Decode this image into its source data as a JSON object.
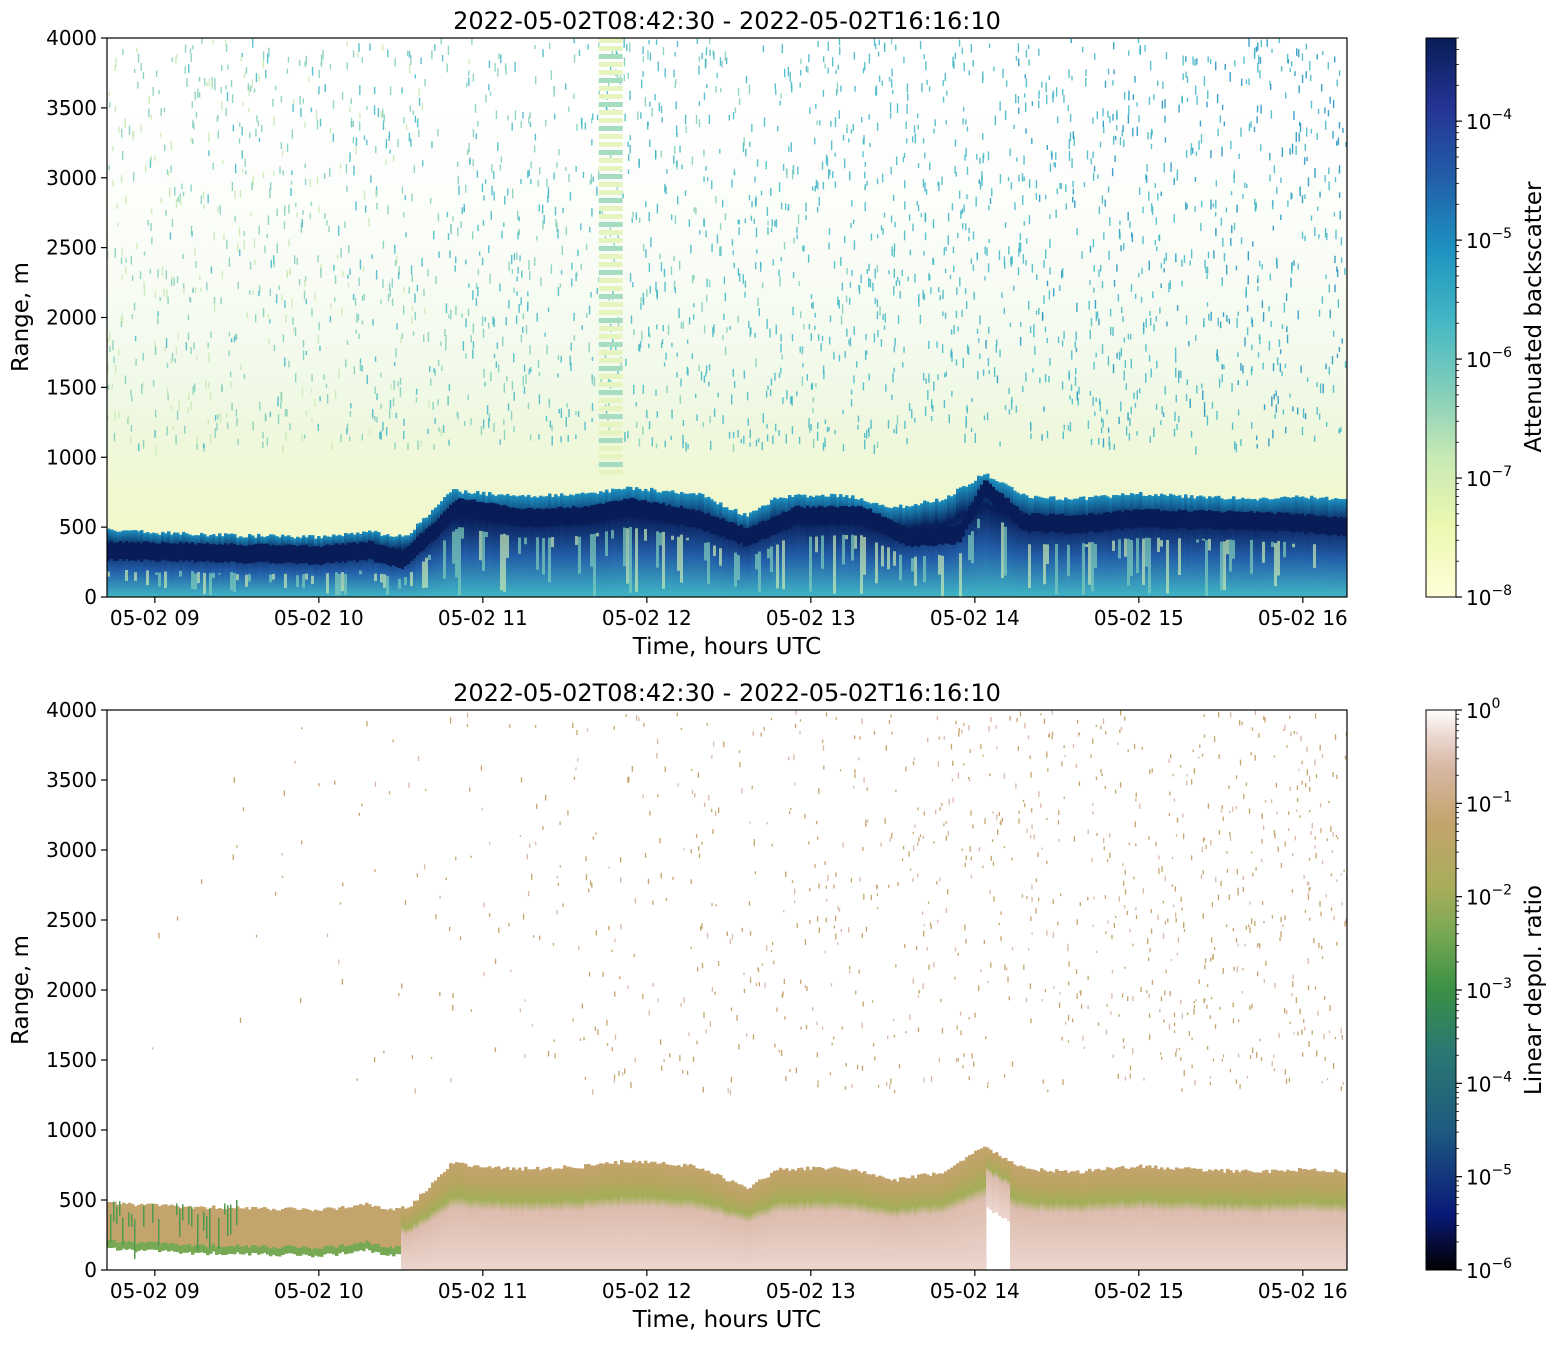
{
  "chart_data": [
    {
      "type": "heatmap",
      "title": "2022-05-02T08:42:30 - 2022-05-02T16:16:10",
      "xlabel": "Time, hours UTC",
      "ylabel": "Range, m",
      "x_range": [
        "2022-05-02T08:42:30",
        "2022-05-02T16:16:10"
      ],
      "x_tick_labels": [
        "05-02 09",
        "05-02 10",
        "05-02 11",
        "05-02 12",
        "05-02 13",
        "05-02 14",
        "05-02 15",
        "05-02 16"
      ],
      "x_tick_hours": [
        9,
        10,
        11,
        12,
        13,
        14,
        15,
        16
      ],
      "ylim": [
        0,
        4000
      ],
      "y_ticks": [
        0,
        500,
        1000,
        1500,
        2000,
        2500,
        3000,
        3500,
        4000
      ],
      "colorbar": {
        "label": "Attenuated backscatter",
        "scale": "log",
        "range": [
          1e-08,
          0.0005
        ],
        "tick_exponents": [
          -8,
          -7,
          -6,
          -5,
          -4
        ],
        "colormap": "YlGnBu",
        "colors": [
          "#ffffd9",
          "#edf8b1",
          "#c7e9b4",
          "#7fcdbb",
          "#41b6c4",
          "#1d91c0",
          "#225ea8",
          "#253494",
          "#081d58"
        ]
      },
      "layer_top_m": [
        [
          8.7,
          480
        ],
        [
          9.0,
          460
        ],
        [
          9.5,
          440
        ],
        [
          10.0,
          430
        ],
        [
          10.3,
          470
        ],
        [
          10.45,
          430
        ],
        [
          10.55,
          460
        ],
        [
          10.8,
          760
        ],
        [
          11.2,
          720
        ],
        [
          11.6,
          740
        ],
        [
          11.9,
          780
        ],
        [
          12.3,
          740
        ],
        [
          12.6,
          580
        ],
        [
          12.8,
          720
        ],
        [
          13.2,
          730
        ],
        [
          13.5,
          640
        ],
        [
          13.8,
          700
        ],
        [
          14.05,
          880
        ],
        [
          14.3,
          720
        ],
        [
          14.6,
          700
        ],
        [
          15.0,
          740
        ],
        [
          15.3,
          720
        ],
        [
          15.7,
          700
        ],
        [
          16.0,
          720
        ],
        [
          16.27,
          700
        ]
      ],
      "layer_peak_m": [
        [
          8.7,
          330
        ],
        [
          9.2,
          320
        ],
        [
          9.6,
          310
        ],
        [
          10.0,
          300
        ],
        [
          10.3,
          330
        ],
        [
          10.5,
          270
        ],
        [
          10.7,
          480
        ],
        [
          10.85,
          650
        ],
        [
          11.2,
          570
        ],
        [
          11.6,
          580
        ],
        [
          11.9,
          640
        ],
        [
          12.3,
          560
        ],
        [
          12.6,
          430
        ],
        [
          12.9,
          580
        ],
        [
          13.3,
          590
        ],
        [
          13.6,
          420
        ],
        [
          13.9,
          450
        ],
        [
          14.05,
          780
        ],
        [
          14.3,
          530
        ],
        [
          14.6,
          520
        ],
        [
          15.0,
          560
        ],
        [
          15.4,
          550
        ],
        [
          15.8,
          540
        ],
        [
          16.27,
          500
        ]
      ]
    },
    {
      "type": "heatmap",
      "title": "2022-05-02T08:42:30 - 2022-05-02T16:16:10",
      "xlabel": "Time, hours UTC",
      "ylabel": "Range, m",
      "x_range": [
        "2022-05-02T08:42:30",
        "2022-05-02T16:16:10"
      ],
      "x_tick_labels": [
        "05-02 09",
        "05-02 10",
        "05-02 11",
        "05-02 12",
        "05-02 13",
        "05-02 14",
        "05-02 15",
        "05-02 16"
      ],
      "x_tick_hours": [
        9,
        10,
        11,
        12,
        13,
        14,
        15,
        16
      ],
      "ylim": [
        0,
        4000
      ],
      "y_ticks": [
        0,
        500,
        1000,
        1500,
        2000,
        2500,
        3000,
        3500,
        4000
      ],
      "colorbar": {
        "label": "Linear depol. ratio",
        "scale": "log",
        "range": [
          1e-06,
          1
        ],
        "tick_exponents": [
          -6,
          -5,
          -4,
          -3,
          -2,
          -1,
          0
        ],
        "colormap": "gist_earth",
        "colors": [
          "#000000",
          "#0a1a78",
          "#1e5a80",
          "#2a7a70",
          "#3a9045",
          "#77a853",
          "#a8ad5a",
          "#c4a46d",
          "#d8b8a6",
          "#eedcd6",
          "#ffffff"
        ]
      }
    }
  ]
}
